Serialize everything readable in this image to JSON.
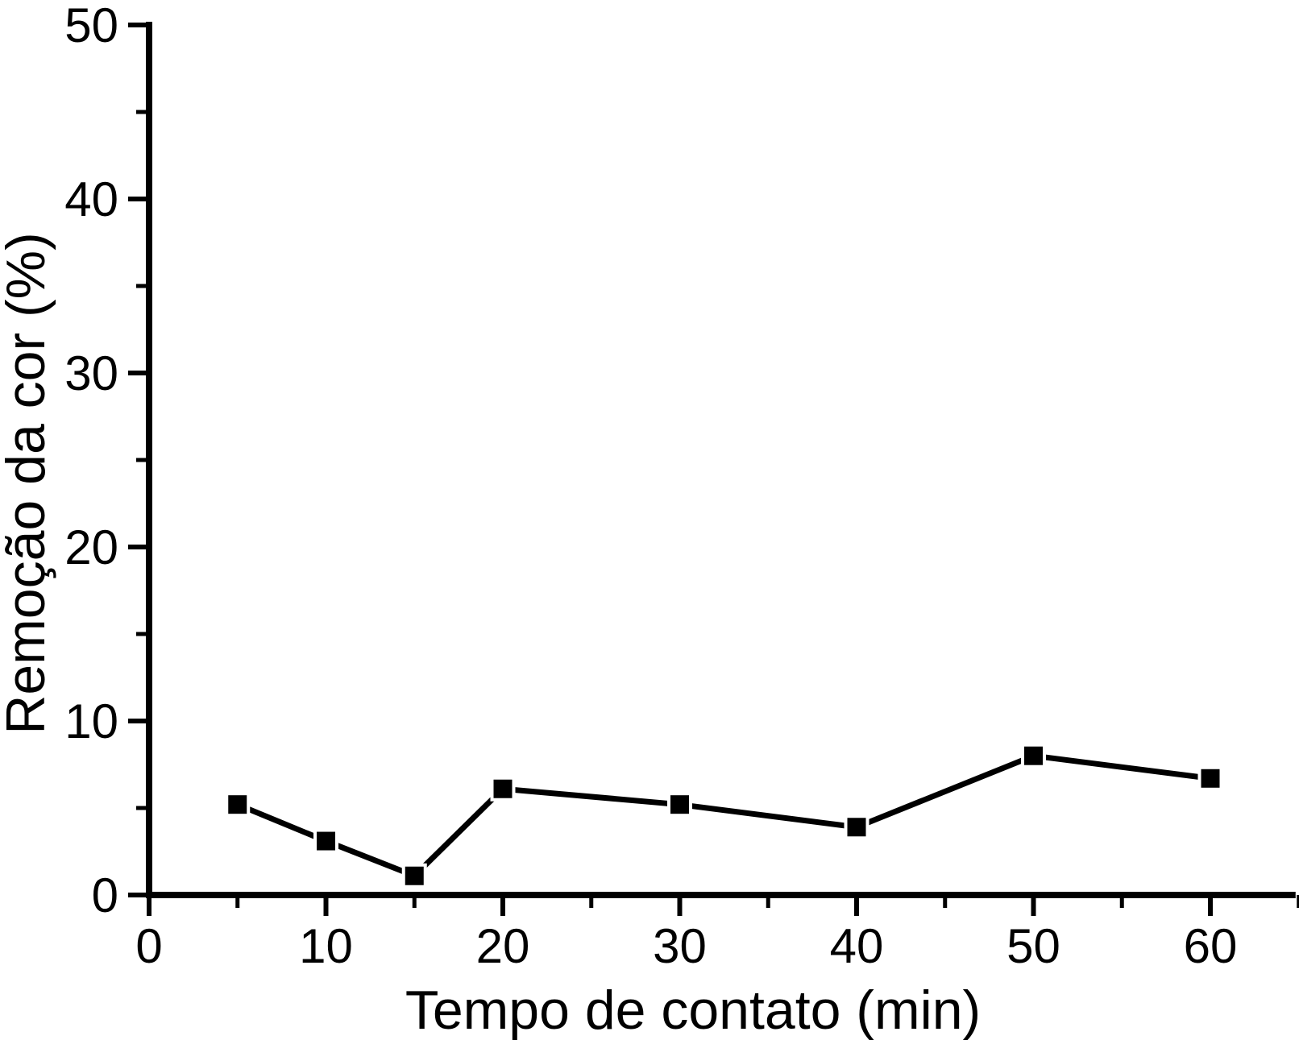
{
  "figure": {
    "background": "#ffffff",
    "foreground": "#000000"
  },
  "chart_data": {
    "type": "line",
    "title": "",
    "xlabel": "Tempo de contato (min)",
    "ylabel": "Remoção da cor (%)",
    "x": [
      5,
      10,
      15,
      20,
      30,
      40,
      50,
      60
    ],
    "y": [
      5.2,
      3.1,
      1.1,
      6.1,
      5.2,
      3.9,
      8.0,
      6.7
    ],
    "series": [
      {
        "name": "Remoção da cor",
        "marker": "filled-square",
        "line_style": "solid",
        "color": "#000000"
      }
    ],
    "xlim": [
      0,
      65
    ],
    "ylim": [
      0,
      50
    ],
    "xticks_major": [
      0,
      10,
      20,
      30,
      40,
      50,
      60
    ],
    "xticks_minor": [
      5,
      15,
      25,
      35,
      45,
      55,
      65
    ],
    "yticks_major": [
      0,
      10,
      20,
      30,
      40,
      50
    ],
    "yticks_minor": [
      5,
      15,
      25,
      35,
      45
    ],
    "tick_direction": "out",
    "grid": false,
    "legend": "none"
  }
}
